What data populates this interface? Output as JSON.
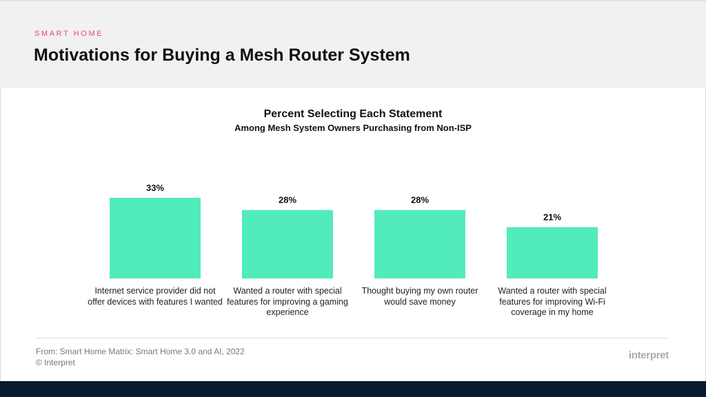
{
  "header": {
    "eyebrow": "SMART HOME",
    "title": "Motivations for Buying a Mesh Router System"
  },
  "chart_data": {
    "type": "bar",
    "title": "Percent Selecting Each Statement",
    "subtitle": "Among Mesh System Owners Purchasing from Non-ISP",
    "categories": [
      "Internet service provider did not offer devices with features I wanted",
      "Wanted a router with special features for improving a gaming experience",
      "Thought buying my own router would save money",
      "Wanted a router with special features for improving Wi-Fi coverage in my home"
    ],
    "values": [
      33,
      28,
      28,
      21
    ],
    "data_labels": [
      "33%",
      "28%",
      "28%",
      "21%"
    ],
    "unit": "%",
    "grid": false,
    "bar_color": "#52ebbc"
  },
  "footer": {
    "source": "From: Smart Home Matrix:  Smart Home 3.0 and AI, 2022",
    "copyright": "© Interpret",
    "logo": "interpret"
  }
}
